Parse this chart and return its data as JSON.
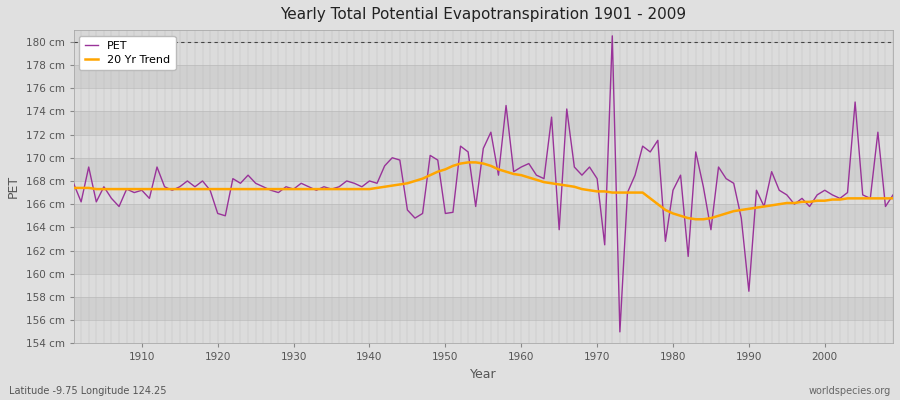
{
  "title": "Yearly Total Potential Evapotranspiration 1901 - 2009",
  "xlabel": "Year",
  "ylabel": "PET",
  "footnote_left": "Latitude -9.75 Longitude 124.25",
  "footnote_right": "worldspecies.org",
  "pet_color": "#993399",
  "trend_color": "#FFA500",
  "bg_color": "#E0E0E0",
  "plot_bg_color": "#D8D8D8",
  "ylim": [
    154,
    181
  ],
  "ytick_step": 2,
  "dotted_line_y": 180,
  "years": [
    1901,
    1902,
    1903,
    1904,
    1905,
    1906,
    1907,
    1908,
    1909,
    1910,
    1911,
    1912,
    1913,
    1914,
    1915,
    1916,
    1917,
    1918,
    1919,
    1920,
    1921,
    1922,
    1923,
    1924,
    1925,
    1926,
    1927,
    1928,
    1929,
    1930,
    1931,
    1932,
    1933,
    1934,
    1935,
    1936,
    1937,
    1938,
    1939,
    1940,
    1941,
    1942,
    1943,
    1944,
    1945,
    1946,
    1947,
    1948,
    1949,
    1950,
    1951,
    1952,
    1953,
    1954,
    1955,
    1956,
    1957,
    1958,
    1959,
    1960,
    1961,
    1962,
    1963,
    1964,
    1965,
    1966,
    1967,
    1968,
    1969,
    1970,
    1971,
    1972,
    1973,
    1974,
    1975,
    1976,
    1977,
    1978,
    1979,
    1980,
    1981,
    1982,
    1983,
    1984,
    1985,
    1986,
    1987,
    1988,
    1989,
    1990,
    1991,
    1992,
    1993,
    1994,
    1995,
    1996,
    1997,
    1998,
    1999,
    2000,
    2001,
    2002,
    2003,
    2004,
    2005,
    2006,
    2007,
    2008,
    2009
  ],
  "pet_values": [
    167.8,
    166.2,
    169.2,
    166.2,
    167.5,
    166.5,
    165.8,
    167.3,
    167.0,
    167.2,
    166.5,
    169.2,
    167.5,
    167.2,
    167.5,
    168.0,
    167.5,
    168.0,
    167.2,
    165.2,
    165.0,
    168.2,
    167.8,
    168.5,
    167.8,
    167.5,
    167.2,
    167.0,
    167.5,
    167.3,
    167.8,
    167.5,
    167.2,
    167.5,
    167.3,
    167.5,
    168.0,
    167.8,
    167.5,
    168.0,
    167.8,
    169.3,
    170.0,
    169.8,
    165.5,
    164.8,
    165.2,
    170.2,
    169.8,
    165.2,
    165.3,
    171.0,
    170.5,
    165.8,
    170.8,
    172.2,
    168.5,
    174.5,
    168.8,
    169.2,
    169.5,
    168.5,
    168.2,
    173.5,
    163.8,
    174.2,
    169.2,
    168.5,
    169.2,
    168.2,
    162.5,
    180.5,
    155.0,
    167.0,
    168.5,
    171.0,
    170.5,
    171.5,
    162.8,
    167.2,
    168.5,
    161.5,
    170.5,
    167.5,
    163.8,
    169.2,
    168.2,
    167.8,
    164.8,
    158.5,
    167.2,
    165.8,
    168.8,
    167.2,
    166.8,
    166.0,
    166.5,
    165.8,
    166.8,
    167.2,
    166.8,
    166.5,
    167.0,
    174.8,
    166.8,
    166.5,
    172.2,
    165.8,
    166.8
  ],
  "trend_years": [
    1901,
    1902,
    1903,
    1904,
    1905,
    1906,
    1907,
    1908,
    1909,
    1910,
    1911,
    1912,
    1913,
    1914,
    1915,
    1916,
    1917,
    1918,
    1919,
    1920,
    1921,
    1922,
    1923,
    1924,
    1925,
    1926,
    1927,
    1928,
    1929,
    1930,
    1931,
    1932,
    1933,
    1934,
    1935,
    1936,
    1937,
    1938,
    1939,
    1940,
    1941,
    1942,
    1943,
    1944,
    1945,
    1946,
    1947,
    1948,
    1949,
    1950,
    1951,
    1952,
    1953,
    1954,
    1955,
    1956,
    1957,
    1958,
    1959,
    1960,
    1961,
    1962,
    1963,
    1964,
    1965,
    1966,
    1967,
    1968,
    1969,
    1970,
    1971,
    1972,
    1973,
    1974,
    1975,
    1976,
    1977,
    1978,
    1979,
    1980,
    1981,
    1982,
    1983,
    1984,
    1985,
    1986,
    1987,
    1988,
    1989,
    1990,
    1991,
    1992,
    1993,
    1994,
    1995,
    1996,
    1997,
    1998,
    1999,
    2000,
    2001,
    2002,
    2003,
    2004,
    2005,
    2006,
    2007,
    2008,
    2009
  ],
  "trend_values": [
    167.4,
    167.4,
    167.4,
    167.3,
    167.3,
    167.3,
    167.3,
    167.3,
    167.3,
    167.3,
    167.3,
    167.3,
    167.3,
    167.3,
    167.3,
    167.3,
    167.3,
    167.3,
    167.3,
    167.3,
    167.3,
    167.3,
    167.3,
    167.3,
    167.3,
    167.3,
    167.3,
    167.3,
    167.3,
    167.3,
    167.3,
    167.3,
    167.3,
    167.3,
    167.3,
    167.3,
    167.3,
    167.3,
    167.3,
    167.3,
    167.4,
    167.5,
    167.6,
    167.7,
    167.8,
    168.0,
    168.2,
    168.5,
    168.8,
    169.0,
    169.3,
    169.5,
    169.6,
    169.6,
    169.5,
    169.3,
    169.0,
    168.8,
    168.6,
    168.5,
    168.3,
    168.1,
    167.9,
    167.8,
    167.7,
    167.6,
    167.5,
    167.3,
    167.2,
    167.1,
    167.1,
    167.0,
    167.0,
    167.0,
    167.0,
    167.0,
    166.5,
    166.0,
    165.5,
    165.2,
    165.0,
    164.8,
    164.7,
    164.7,
    164.8,
    165.0,
    165.2,
    165.4,
    165.5,
    165.6,
    165.7,
    165.8,
    165.9,
    166.0,
    166.1,
    166.1,
    166.2,
    166.2,
    166.3,
    166.3,
    166.4,
    166.4,
    166.5,
    166.5,
    166.5,
    166.5,
    166.5,
    166.5,
    166.5
  ],
  "band_colors": [
    "#DCDCDC",
    "#D0D0D0"
  ],
  "grid_color": "#BBBBBB",
  "tick_color": "#555555"
}
